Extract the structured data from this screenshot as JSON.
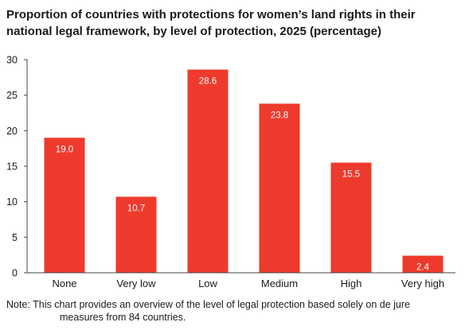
{
  "chart_data": {
    "type": "bar",
    "title": "Proportion of countries with protections for women’s land rights in their national legal framework, by level of protection, 2025 (percentage)",
    "categories": [
      "None",
      "Very low",
      "Low",
      "Medium",
      "High",
      "Very high"
    ],
    "values": [
      19.0,
      10.7,
      28.6,
      23.8,
      15.5,
      2.4
    ],
    "value_labels": [
      "19.0",
      "10.7",
      "28.6",
      "23.8",
      "15.5",
      "2.4"
    ],
    "ylim": [
      0,
      30
    ],
    "yticks": [
      "0",
      "5",
      "10",
      "15",
      "20",
      "25",
      "30"
    ],
    "xlabel": "",
    "ylabel": "",
    "grid": false,
    "bar_color": "#ee3a2c",
    "label_color": "#ffffff"
  },
  "note_line1": "Note: This chart provides an overview of the level of legal protection based solely on de jure",
  "note_line2": "measures from 84 countries."
}
